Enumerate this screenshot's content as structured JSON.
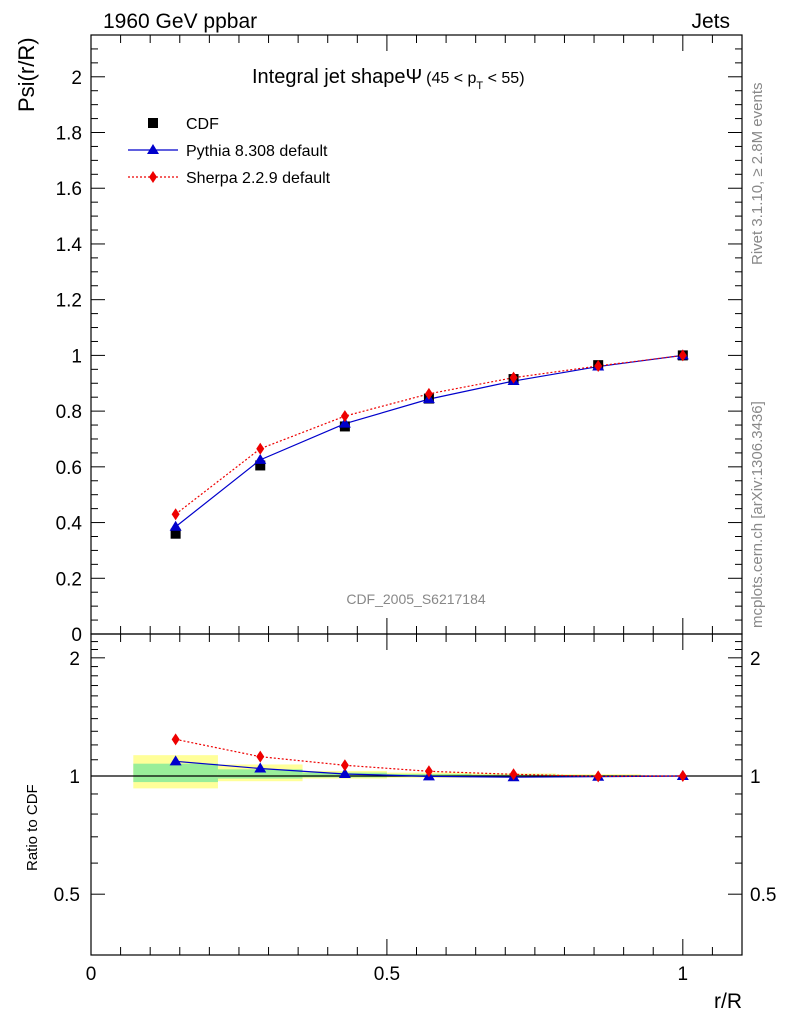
{
  "header": {
    "energy_label": "1960 GeV ppbar",
    "process_label": "Jets"
  },
  "side_labels": {
    "rivet": "Rivet 3.1.10, ≥ 2.8M events",
    "mcplots": "mcplots.cern.ch [arXiv:1306.3436]"
  },
  "watermark": "CDF_2005_S6217184",
  "chart_data": [
    {
      "type": "line",
      "title_main": "Integral jet shapeΨ",
      "title_range": "(45 < p",
      "title_sub": "T",
      "title_tail": " < 55)",
      "ylabel": "Psi(r/R)",
      "xlim": [
        0,
        1.1
      ],
      "ylim": [
        0,
        2.15
      ],
      "y_ticks": [
        0,
        0.2,
        0.4,
        0.6,
        0.8,
        1,
        1.2,
        1.4,
        1.6,
        1.8,
        2
      ],
      "y_tick_labels": [
        "0",
        "0.2",
        "0.4",
        "0.6",
        "0.8",
        "1",
        "1.2",
        "1.4",
        "1.6",
        "1.8",
        "2"
      ],
      "legend_position": "top-left",
      "x": [
        0.143,
        0.286,
        0.429,
        0.571,
        0.714,
        0.857,
        1.0
      ],
      "series": [
        {
          "name": "CDF",
          "style": "data",
          "color": "#000000",
          "values": [
            0.36,
            0.605,
            0.745,
            0.845,
            0.915,
            0.965,
            1.0
          ]
        },
        {
          "name": "Pythia 8.308 default",
          "style": "line-triangle",
          "color": "#0000cc",
          "values": [
            0.385,
            0.625,
            0.755,
            0.843,
            0.908,
            0.96,
            1.0
          ]
        },
        {
          "name": "Sherpa 2.2.9 default",
          "style": "dotted-diamond",
          "color": "#ee0000",
          "values": [
            0.43,
            0.665,
            0.782,
            0.862,
            0.92,
            0.962,
            1.0
          ]
        }
      ]
    },
    {
      "type": "line",
      "ylabel": "Ratio to CDF",
      "xlabel": "r/R",
      "xlim": [
        0,
        1.1
      ],
      "ylim": [
        0.35,
        2.3
      ],
      "x_ticks": [
        0,
        0.5,
        1
      ],
      "x_tick_labels": [
        "0",
        "0.5",
        "1"
      ],
      "y_ticks": [
        0.5,
        1,
        2
      ],
      "y_tick_labels": [
        "0.5",
        "1",
        "2"
      ],
      "x": [
        0.143,
        0.286,
        0.429,
        0.571,
        0.714,
        0.857,
        1.0
      ],
      "bin_edges": [
        0.0715,
        0.2145,
        0.3575,
        0.5,
        0.643,
        0.786,
        0.929,
        1.0715
      ],
      "bands": {
        "yellow": {
          "color": "#ffff99",
          "low": [
            0.93,
            0.97,
            0.985,
            0.99,
            0.995,
            0.997,
            0.999
          ],
          "high": [
            1.13,
            1.07,
            1.03,
            1.02,
            1.015,
            1.01,
            1.001
          ]
        },
        "green": {
          "color": "#99ee99",
          "low": [
            0.965,
            0.985,
            0.992,
            0.995,
            0.997,
            0.998,
            0.999
          ],
          "high": [
            1.075,
            1.04,
            1.02,
            1.012,
            1.008,
            1.005,
            1.001
          ]
        }
      },
      "series": [
        {
          "name": "Pythia 8.308 default",
          "color": "#0000cc",
          "values": [
            1.09,
            1.045,
            1.012,
            0.998,
            0.993,
            0.996,
            1.0
          ]
        },
        {
          "name": "Sherpa 2.2.9 default",
          "color": "#ee0000",
          "values": [
            1.24,
            1.12,
            1.065,
            1.028,
            1.01,
            0.998,
            1.0
          ]
        }
      ]
    }
  ]
}
